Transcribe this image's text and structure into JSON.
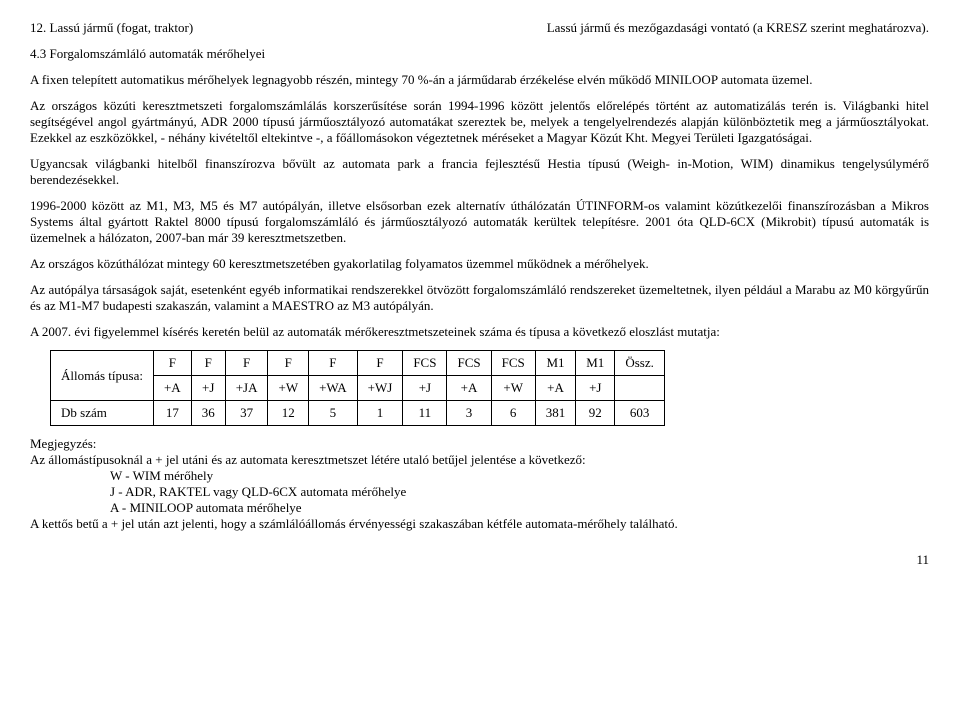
{
  "row1": {
    "left": "12. Lassú jármű (fogat, traktor)",
    "right": "Lassú jármű és mezőgazdasági vontató (a KRESZ szerint meghatározva)."
  },
  "section_title": "4.3 Forgalomszámláló automaták mérőhelyei",
  "p1": "A fixen telepített automatikus mérőhelyek legnagyobb részén, mintegy 70 %-án a járműdarab érzékelése elvén működő MINILOOP automata üzemel.",
  "p2": "Az országos közúti keresztmetszeti forgalomszámlálás korszerűsítése során 1994-1996 között jelentős előrelépés történt az automatizálás terén is. Világbanki hitel segítségével angol gyártmányú, ADR 2000 típusú járműosztályozó automatákat szereztek be, melyek a tengelyelrendezés alapján különböztetik meg a járműosztályokat. Ezekkel az eszközökkel, - néhány kivételtől eltekintve -, a főállomásokon végeztetnek méréseket a Magyar Közút Kht. Megyei Területi Igazgatóságai.",
  "p3": "Ugyancsak világbanki hitelből finanszírozva bővült az automata park a francia fejlesztésű Hestia típusú (Weigh- in-Motion, WIM) dinamikus tengelysúlymérő berendezésekkel.",
  "p4": "1996-2000 között az M1, M3, M5 és M7 autópályán, illetve elsősorban ezek alternatív úthálózatán ÚTINFORM-os valamint közútkezelői finanszírozásban  a Mikros Systems által gyártott Raktel 8000 típusú forgalomszámláló és járműosztályozó automaták kerültek telepítésre. 2001 óta QLD-6CX (Mikrobit) típusú automaták is üzemelnek a hálózaton, 2007-ban már 39 keresztmetszetben.",
  "p5": "Az országos közúthálózat mintegy 60 keresztmetszetében gyakorlatilag folyamatos üzemmel működnek a mérőhelyek.",
  "p6": "Az autópálya társaságok saját, esetenként egyéb informatikai rendszerekkel ötvözött forgalomszámláló rendszereket üzemeltetnek, ilyen például a Marabu az M0 körgyűrűn és az M1-M7 budapesti szakaszán, valamint a MAESTRO az M3 autópályán.",
  "p7": "A 2007. évi figyelemmel kísérés keretén belül az automaták mérőkeresztmetszeteinek száma és típusa a következő eloszlást mutatja:",
  "table": {
    "header_row1_label": "Állomás típusa:",
    "cols_top": [
      "F",
      "F",
      "F",
      "F",
      "F",
      "F",
      "FCS",
      "FCS",
      "FCS",
      "M1",
      "M1",
      "Össz."
    ],
    "cols_bot": [
      "+A",
      "+J",
      "+JA",
      "+W",
      "+WA",
      "+WJ",
      "+J",
      "+A",
      "+W",
      "+A",
      "+J",
      ""
    ],
    "row2_label": "Db szám",
    "row2_vals": [
      "17",
      "36",
      "37",
      "12",
      "5",
      "1",
      "11",
      "3",
      "6",
      "381",
      "92",
      "603"
    ]
  },
  "note_label": "Megjegyzés:",
  "note_p1": "Az állomástípusoknál a + jel utáni és az automata keresztmetszet létére utaló betűjel jelentése a következő:",
  "note_w": "W - WIM mérőhely",
  "note_j": "J  - ADR, RAKTEL vagy QLD-6CX automata mérőhelye",
  "note_a": "A  - MINILOOP automata mérőhelye",
  "note_p2": "A kettős betű a + jel után azt jelenti, hogy a számlálóállomás érvényességi szakaszában kétféle automata-mérőhely található.",
  "page_num": "11"
}
